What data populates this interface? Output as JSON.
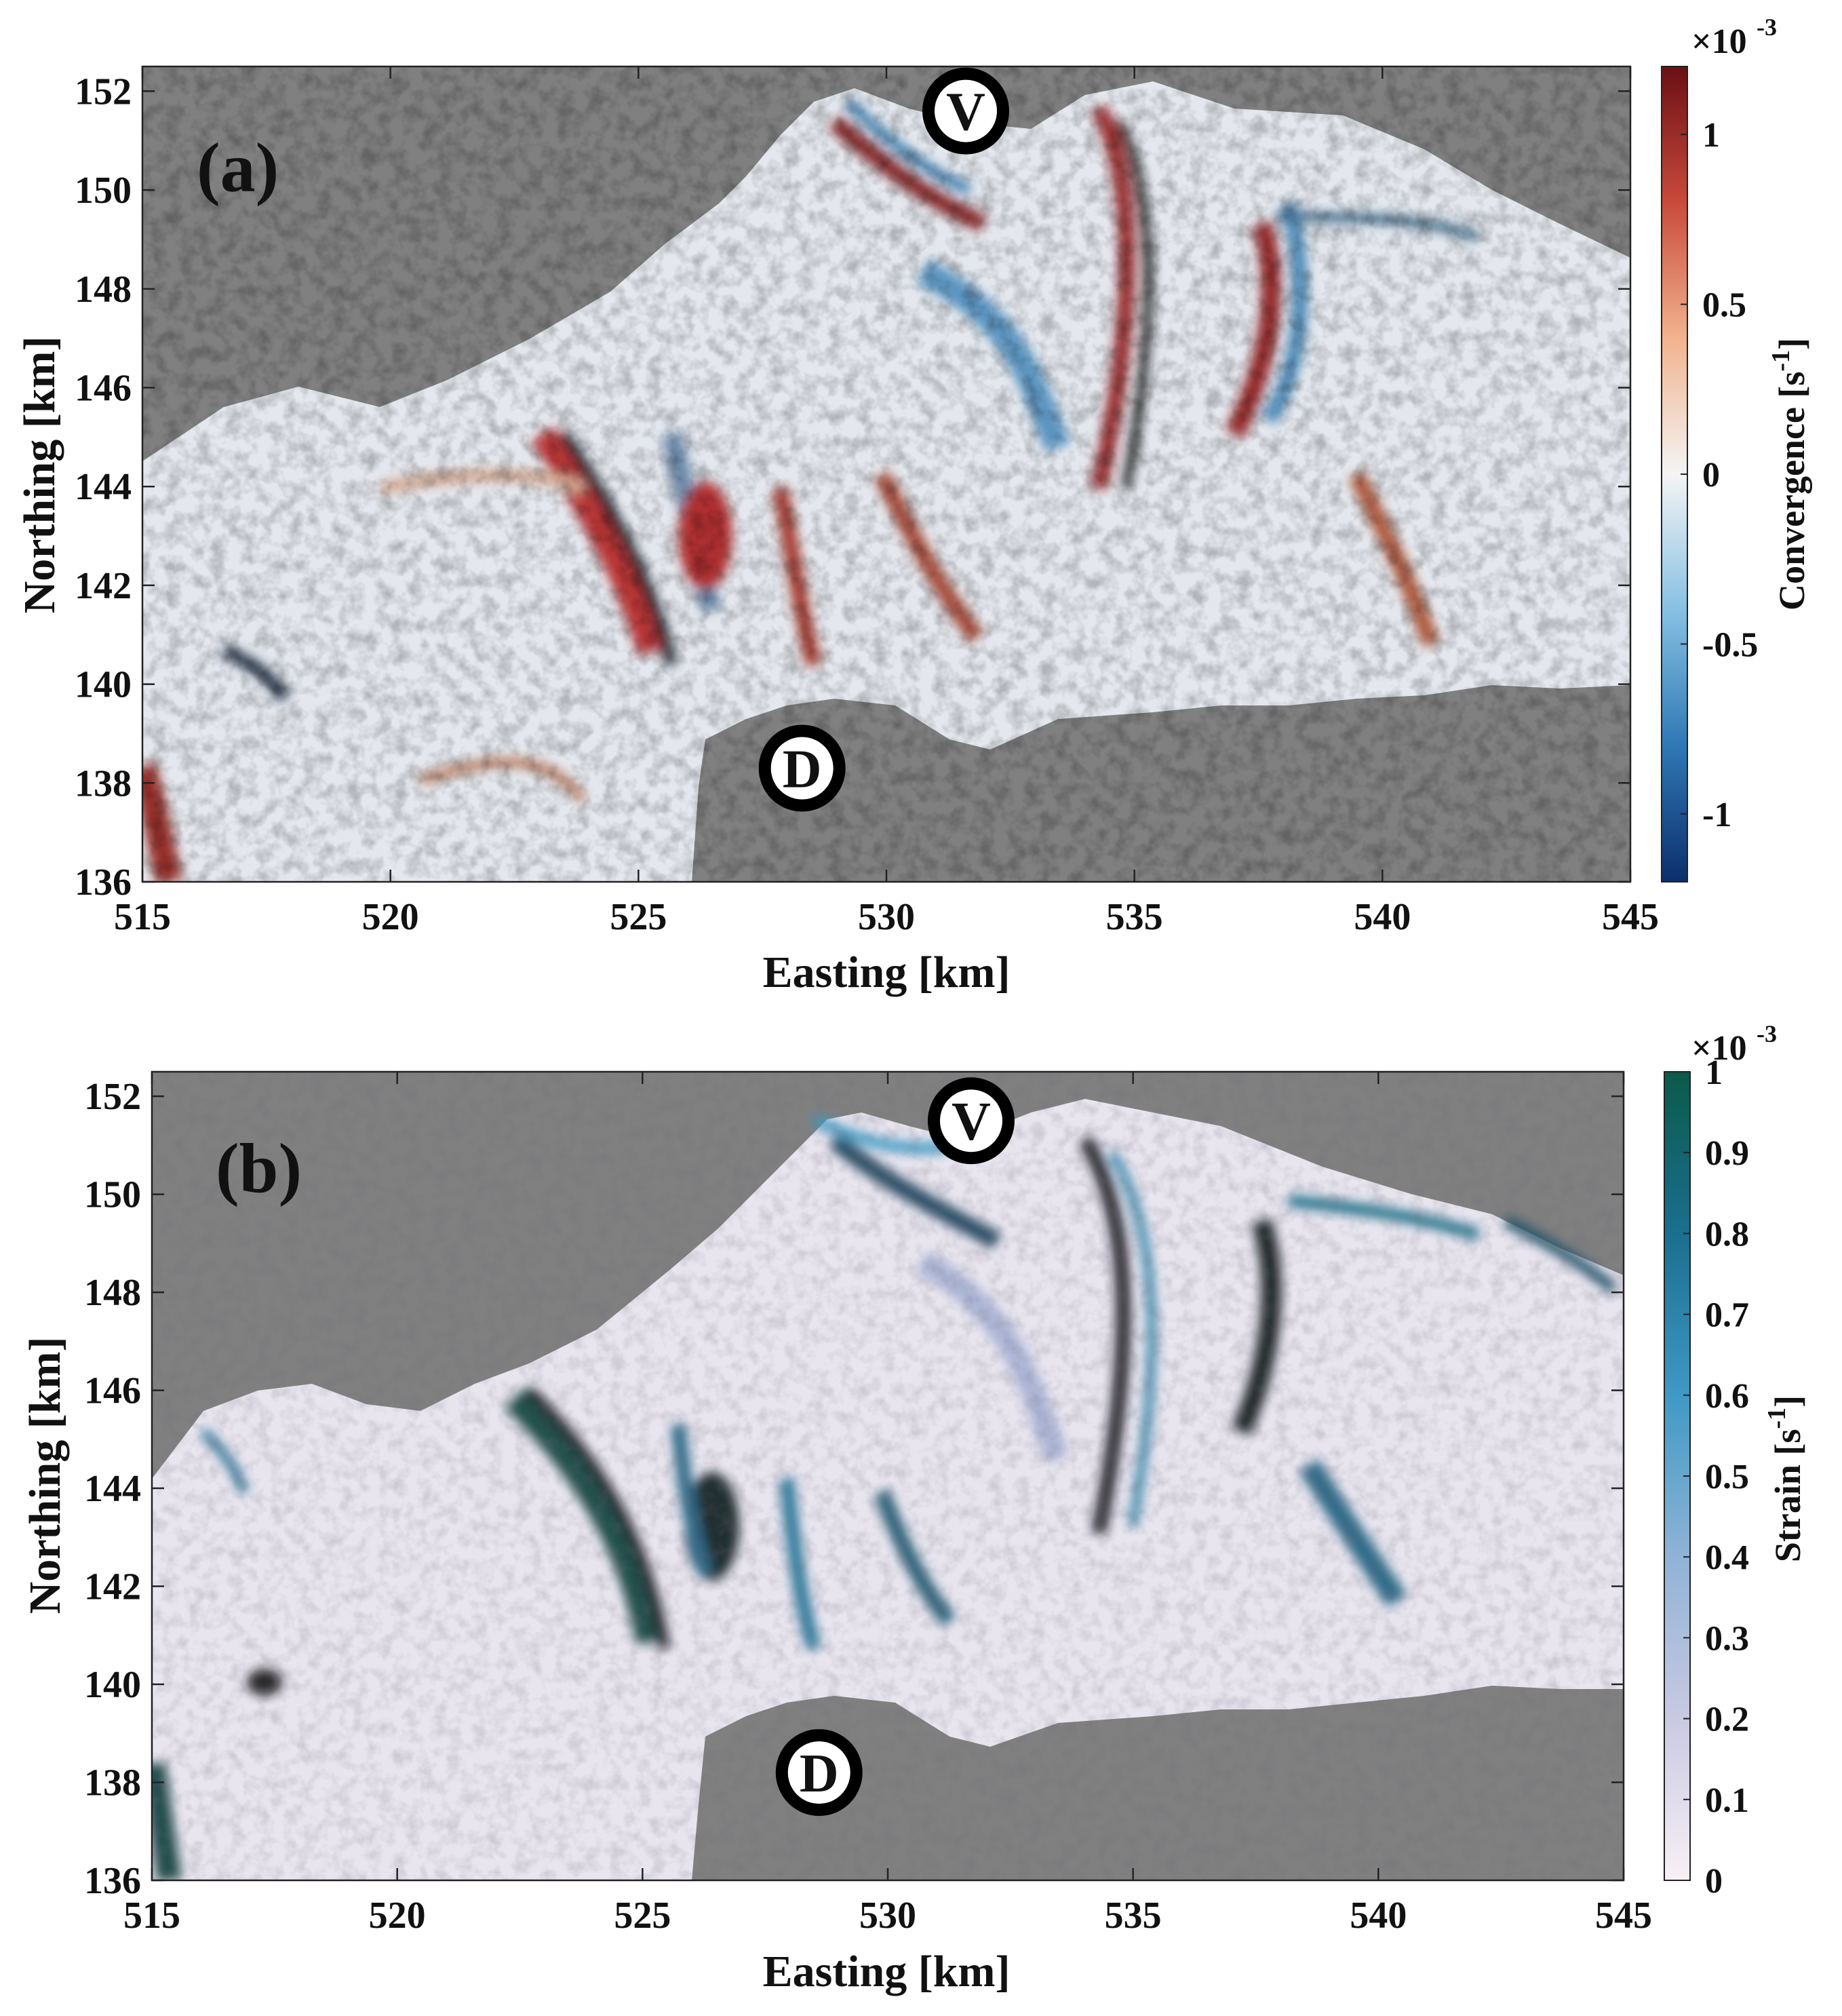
{
  "chart_data": [
    {
      "type": "heatmap",
      "panel_label": "(a)",
      "xlabel": "Easting [km]",
      "ylabel": "Northing [km]",
      "xlim": [
        515,
        545
      ],
      "ylim": [
        136,
        152.5
      ],
      "xticks": [
        515,
        520,
        525,
        530,
        535,
        540,
        545
      ],
      "yticks": [
        136,
        138,
        140,
        142,
        144,
        146,
        148,
        150,
        152
      ],
      "markers": [
        {
          "label": "V",
          "x": 531.6,
          "y": 151.6
        },
        {
          "label": "D",
          "x": 528.3,
          "y": 138.3
        }
      ],
      "colorbar": {
        "label": "Convergence [s",
        "label_sup": "-1",
        "label_end": "]",
        "exponent_base": "×10",
        "exponent": "-3",
        "range": [
          -1.2,
          1.2
        ],
        "ticks": [
          1,
          0.5,
          0,
          -0.5,
          -1
        ],
        "tick_labels": [
          "1",
          "0.5",
          "0",
          "-0.5",
          "-1"
        ],
        "colormap": "diverging blue-white-red",
        "colors": [
          "#0b2f6b",
          "#2f78b5",
          "#86c0e3",
          "#f4f4f4",
          "#f2b38e",
          "#c94a3b",
          "#6b0f14"
        ]
      },
      "background_color": "#808080"
    },
    {
      "type": "heatmap",
      "panel_label": "(b)",
      "xlabel": "Easting [km]",
      "ylabel": "Northing [km]",
      "xlim": [
        515,
        545
      ],
      "ylim": [
        136,
        152.5
      ],
      "xticks": [
        515,
        520,
        525,
        530,
        535,
        540,
        545
      ],
      "yticks": [
        136,
        138,
        140,
        142,
        144,
        146,
        148,
        150,
        152
      ],
      "markers": [
        {
          "label": "V",
          "x": 531.7,
          "y": 151.5
        },
        {
          "label": "D",
          "x": 528.6,
          "y": 138.2
        }
      ],
      "colorbar": {
        "label": "Strain [s",
        "label_sup": "-1",
        "label_end": "]",
        "exponent_base": "×10",
        "exponent": "-3",
        "range": [
          0,
          1
        ],
        "ticks": [
          1,
          0.9,
          0.8,
          0.7,
          0.6,
          0.5,
          0.4,
          0.3,
          0.2,
          0.1,
          0
        ],
        "tick_labels": [
          "1",
          "0.9",
          "0.8",
          "0.7",
          "0.6",
          "0.5",
          "0.4",
          "0.3",
          "0.2",
          "0.1",
          "0"
        ],
        "colormap": "sequential white-blue-green",
        "colors": [
          "#f8f0f5",
          "#c9c9e2",
          "#8fb3d6",
          "#3f99c4",
          "#1a6f8f",
          "#0b5a4a"
        ]
      },
      "background_color": "#808080"
    }
  ]
}
